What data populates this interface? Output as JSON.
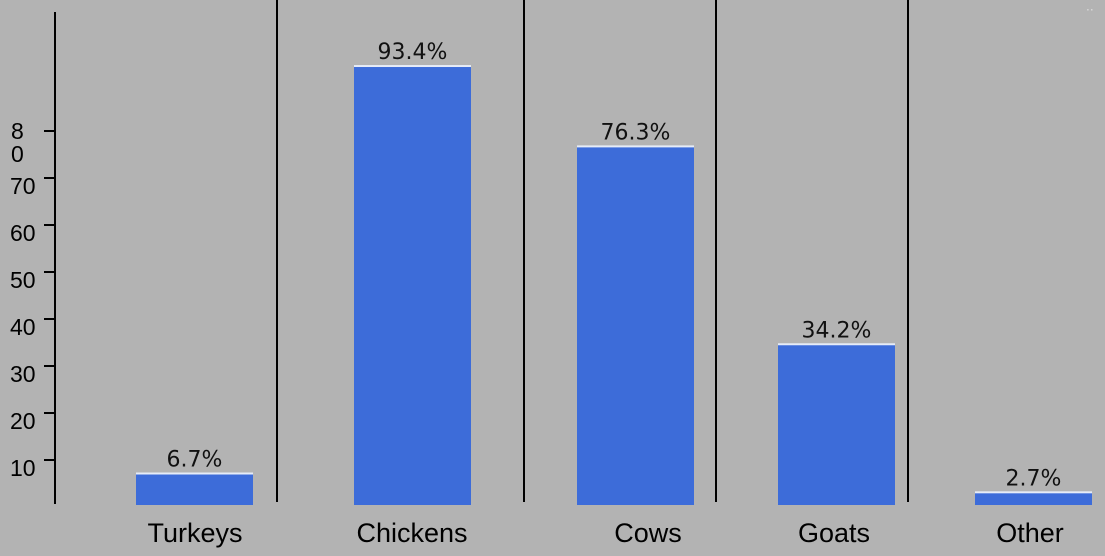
{
  "chart_data": {
    "type": "bar",
    "categories": [
      "Turkeys",
      "Chickens",
      "Cows",
      "Goats",
      "Other"
    ],
    "values": [
      6.7,
      93.4,
      76.3,
      34.2,
      2.7
    ],
    "data_labels": [
      "6.7%",
      "93.4%",
      "76.3%",
      "34.2%",
      "2.7%"
    ],
    "y_tick_labels": [
      {
        "value": 10,
        "text": "10"
      },
      {
        "value": 20,
        "text": "20"
      },
      {
        "value": 30,
        "text": "30"
      },
      {
        "value": 40,
        "text": "40"
      },
      {
        "value": 50,
        "text": "50"
      },
      {
        "value": 60,
        "text": "60"
      },
      {
        "value": 70,
        "text": "70"
      },
      {
        "value": 80,
        "text": "8\n0"
      }
    ],
    "title": "",
    "xlabel": "",
    "ylabel": "",
    "ylim": [
      0,
      110
    ],
    "grid": false,
    "legend": "none",
    "colors": {
      "bar": "#3d6cd9",
      "bar_top": "#e6ecf8",
      "background": "#b3b3b3",
      "axis": "#000000"
    }
  }
}
